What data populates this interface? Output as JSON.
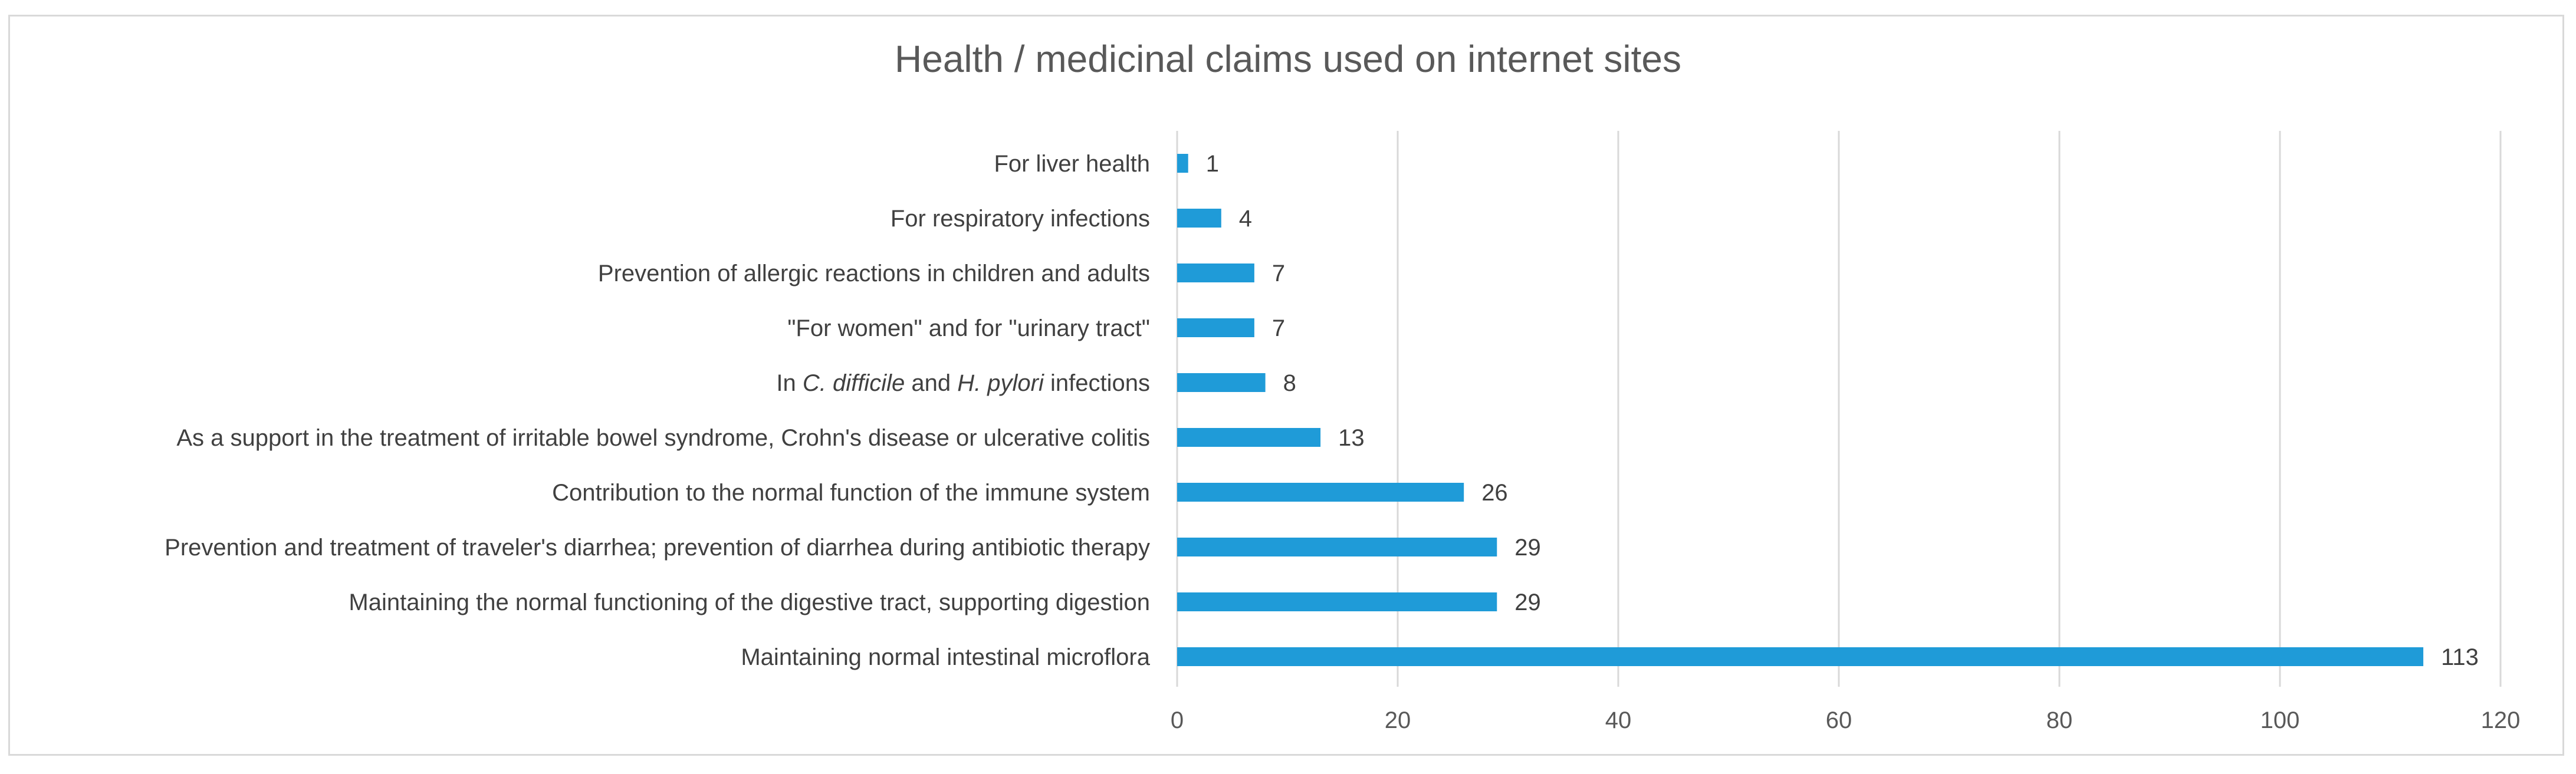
{
  "chart_data": {
    "type": "bar",
    "orientation": "horizontal",
    "title": "Health / medicinal claims used on internet sites",
    "xlabel": "",
    "ylabel": "",
    "xlim": [
      0,
      120
    ],
    "ticks": [
      0,
      20,
      40,
      60,
      80,
      100,
      120
    ],
    "tick_labels": [
      "0",
      "20",
      "40",
      "60",
      "80",
      "100",
      "120"
    ],
    "grid": "vertical",
    "legend": "none",
    "bar_color": "#1f9bd8",
    "categories": [
      {
        "label": "For liver health",
        "value": 1,
        "value_label": "1"
      },
      {
        "label": "For respiratory infections",
        "value": 4,
        "value_label": "4"
      },
      {
        "label": "Prevention of allergic reactions in children and adults",
        "value": 7,
        "value_label": "7"
      },
      {
        "label": "\"For women\" and for \"urinary tract\"",
        "value": 7,
        "value_label": "7"
      },
      {
        "label_parts": [
          {
            "text": "In ",
            "italic": false
          },
          {
            "text": "C. difficile",
            "italic": true
          },
          {
            "text": " and ",
            "italic": false
          },
          {
            "text": "H. pylori",
            "italic": true
          },
          {
            "text": " infections",
            "italic": false
          }
        ],
        "value": 8,
        "value_label": "8"
      },
      {
        "label": "As a support in the treatment of irritable bowel syndrome, Crohn's disease or ulcerative colitis",
        "value": 13,
        "value_label": "13"
      },
      {
        "label": "Contribution to the normal function of the immune system",
        "value": 26,
        "value_label": "26"
      },
      {
        "label": "Prevention and treatment of traveler's diarrhea; prevention of diarrhea during antibiotic therapy",
        "value": 29,
        "value_label": "29"
      },
      {
        "label": "Maintaining the normal functioning of the digestive tract, supporting digestion",
        "value": 29,
        "value_label": "29"
      },
      {
        "label": "Maintaining normal intestinal microflora",
        "value": 113,
        "value_label": "113"
      }
    ]
  }
}
